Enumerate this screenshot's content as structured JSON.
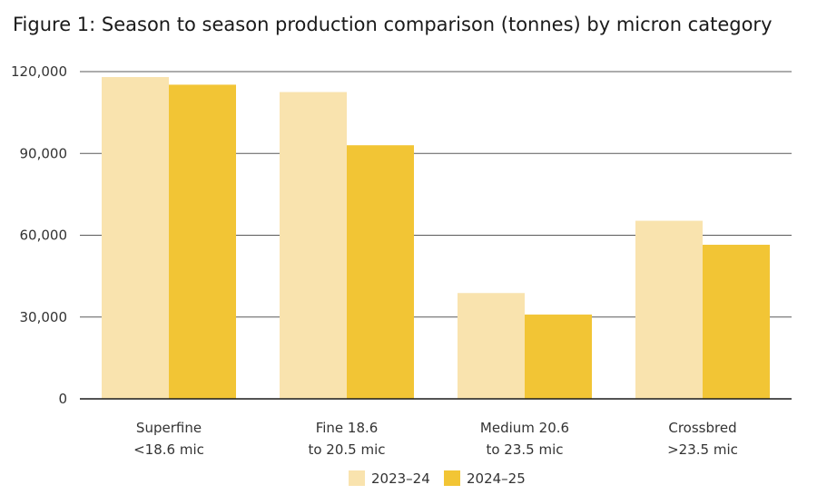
{
  "chart_data": {
    "type": "bar",
    "title": "Figure 1: Season to season production comparison (tonnes) by micron category",
    "xlabel": "",
    "ylabel": "",
    "ylim": [
      0,
      120000
    ],
    "yticks": [
      0,
      30000,
      60000,
      90000,
      120000
    ],
    "ytick_labels": [
      "0",
      "30,000",
      "60,000",
      "90,000",
      "120,000"
    ],
    "grid": true,
    "legend_position": "bottom-center",
    "categories": [
      [
        "Superfine",
        "<18.6 mic"
      ],
      [
        "Fine 18.6",
        "to 20.5 mic"
      ],
      [
        "Medium 20.6",
        "to 23.5 mic"
      ],
      [
        "Crossbred",
        ">23.5 mic"
      ]
    ],
    "series": [
      {
        "name": "2023–24",
        "color": "#f9e3ae",
        "values": [
          118000,
          112500,
          38800,
          65300
        ]
      },
      {
        "name": "2024–25",
        "color": "#f2c535",
        "values": [
          115200,
          93000,
          30900,
          56500
        ]
      }
    ]
  }
}
